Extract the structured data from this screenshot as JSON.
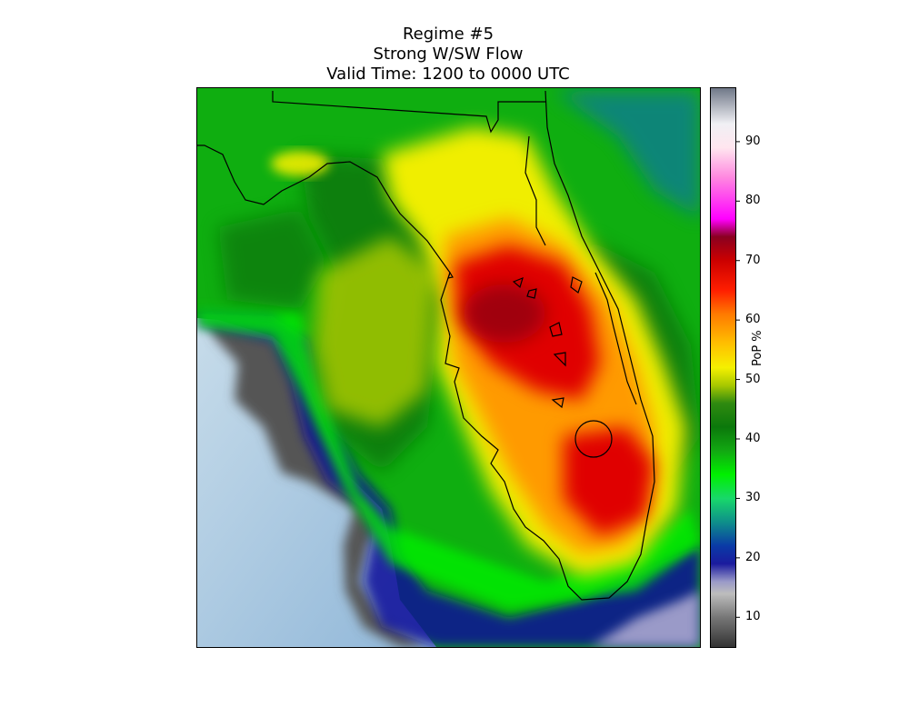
{
  "title": {
    "line1": "Regime #5",
    "line2": "Strong W/SW Flow",
    "line3": "Valid Time: 1200 to 0000 UTC"
  },
  "colorbar": {
    "label": "PoP %",
    "ticks": [
      "90",
      "80",
      "70",
      "60",
      "50",
      "40",
      "30",
      "20",
      "10"
    ],
    "range": [
      5,
      99
    ],
    "stops": [
      {
        "v": 5,
        "c": "#333333"
      },
      {
        "v": 10,
        "c": "#777777"
      },
      {
        "v": 14,
        "c": "#bdbdbd"
      },
      {
        "v": 16,
        "c": "#9a9ac8"
      },
      {
        "v": 19,
        "c": "#1b1b9e"
      },
      {
        "v": 22,
        "c": "#0a3aa6"
      },
      {
        "v": 26,
        "c": "#0e8f8a"
      },
      {
        "v": 30,
        "c": "#18d86a"
      },
      {
        "v": 34,
        "c": "#00f000"
      },
      {
        "v": 38,
        "c": "#12a812"
      },
      {
        "v": 42,
        "c": "#0b780b"
      },
      {
        "v": 46,
        "c": "#2f8a10"
      },
      {
        "v": 49,
        "c": "#a8c800"
      },
      {
        "v": 52,
        "c": "#f5f000"
      },
      {
        "v": 56,
        "c": "#ffc000"
      },
      {
        "v": 61,
        "c": "#ff7a00"
      },
      {
        "v": 65,
        "c": "#ff1e00"
      },
      {
        "v": 70,
        "c": "#cc0000"
      },
      {
        "v": 74,
        "c": "#8a0020"
      },
      {
        "v": 77,
        "c": "#ff00ff"
      },
      {
        "v": 84,
        "c": "#ff88e0"
      },
      {
        "v": 89,
        "c": "#ffe6ef"
      },
      {
        "v": 93,
        "c": "#f0f0f4"
      },
      {
        "v": 99,
        "c": "#707888"
      }
    ]
  },
  "colors": {
    "land_green": "#0fae10",
    "dark_green": "#0a7a0a",
    "bright_green": "#00f000",
    "yellow": "#f0ee00",
    "orange": "#ff9a00",
    "red": "#e00000",
    "dark_red": "#a00010",
    "navy": "#0a0a9a",
    "gray": "#666666",
    "water_light": "#c7dcea",
    "water_dark": "#8fb6d8"
  }
}
